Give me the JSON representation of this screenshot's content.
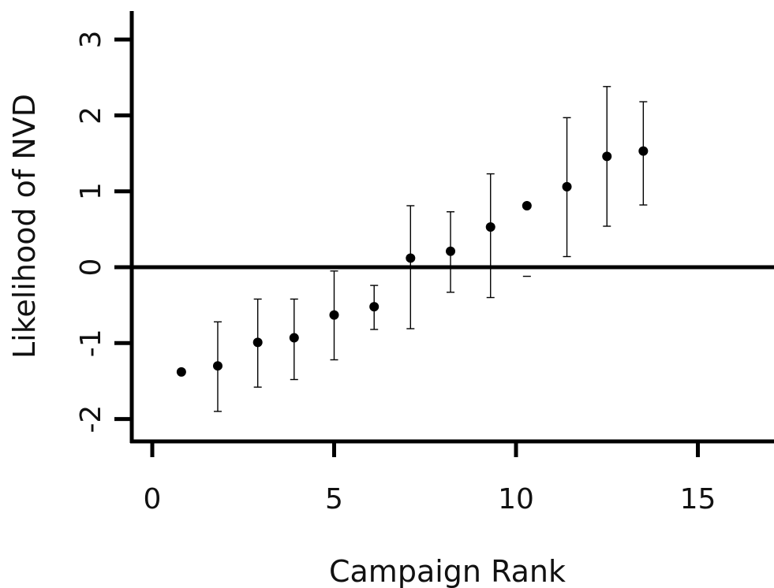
{
  "chart_data": {
    "type": "scatter",
    "title": "",
    "xlabel": "Campaign Rank",
    "ylabel": "Likelihood of NVD",
    "xlim": [
      -1,
      17
    ],
    "ylim": [
      -2.3,
      3.4
    ],
    "xticks": [
      0,
      5,
      10,
      15
    ],
    "yticks": [
      -2,
      -1,
      0,
      1,
      2,
      3
    ],
    "reference_line_y": 0,
    "grid": false,
    "legend": "none",
    "colors": {
      "points": "#000000",
      "axes": "#000000"
    },
    "points": [
      {
        "x": 0.8,
        "y": -1.38,
        "lower": null,
        "upper": null
      },
      {
        "x": 1.8,
        "y": -1.3,
        "lower": -1.9,
        "upper": -0.72
      },
      {
        "x": 2.9,
        "y": -0.99,
        "lower": -1.58,
        "upper": -0.42
      },
      {
        "x": 3.9,
        "y": -0.93,
        "lower": -1.48,
        "upper": -0.42
      },
      {
        "x": 5.0,
        "y": -0.63,
        "lower": -1.22,
        "upper": -0.05
      },
      {
        "x": 6.1,
        "y": -0.52,
        "lower": -0.82,
        "upper": -0.24
      },
      {
        "x": 7.1,
        "y": 0.12,
        "lower": -0.81,
        "upper": 0.81
      },
      {
        "x": 8.2,
        "y": 0.21,
        "lower": -0.33,
        "upper": 0.73
      },
      {
        "x": 9.3,
        "y": 0.53,
        "lower": -0.4,
        "upper": 1.23
      },
      {
        "x": 10.3,
        "y": 0.81,
        "lower": -0.12,
        "upper": null
      },
      {
        "x": 11.4,
        "y": 1.06,
        "lower": 0.14,
        "upper": 1.97
      },
      {
        "x": 12.5,
        "y": 1.46,
        "lower": 0.54,
        "upper": 2.38
      },
      {
        "x": 13.5,
        "y": 1.53,
        "lower": 0.82,
        "upper": 2.18
      }
    ]
  }
}
